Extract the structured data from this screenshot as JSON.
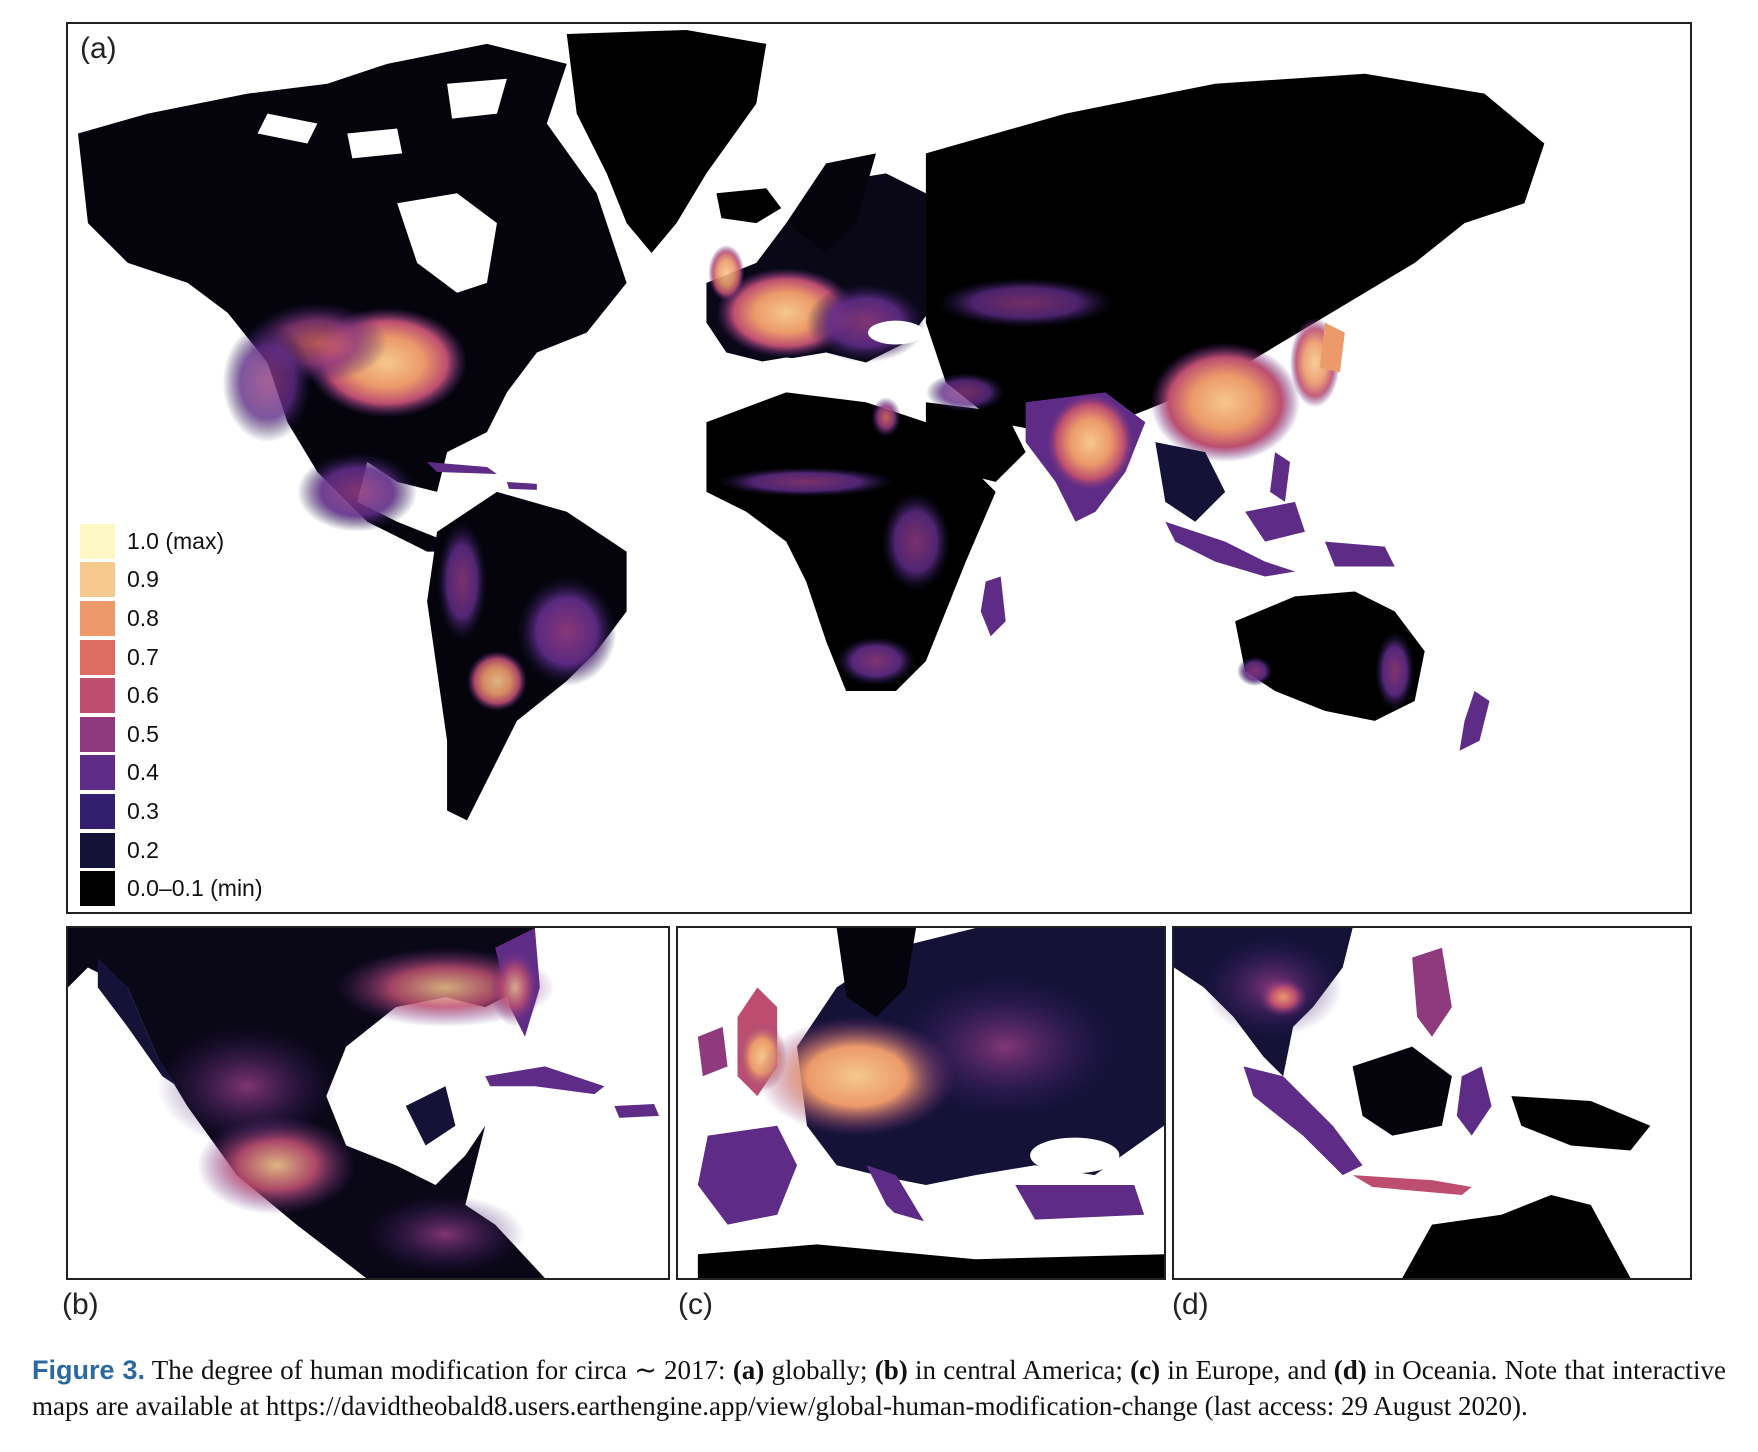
{
  "panels": {
    "a": {
      "label": "(a)"
    },
    "b": {
      "label": "(b)"
    },
    "c": {
      "label": "(c)"
    },
    "d": {
      "label": "(d)"
    }
  },
  "legend": {
    "items": [
      {
        "label": "1.0 (max)",
        "color": "#fcf7c4"
      },
      {
        "label": "0.9",
        "color": "#f5c88d"
      },
      {
        "label": "0.8",
        "color": "#ec9a6a"
      },
      {
        "label": "0.7",
        "color": "#dd6c63"
      },
      {
        "label": "0.6",
        "color": "#bd4e70"
      },
      {
        "label": "0.5",
        "color": "#8f3a7d"
      },
      {
        "label": "0.4",
        "color": "#5e2b87"
      },
      {
        "label": "0.3",
        "color": "#331e6e"
      },
      {
        "label": "0.2",
        "color": "#151238"
      },
      {
        "label": "0.0–0.1 (min)",
        "color": "#000000"
      }
    ]
  },
  "caption": {
    "figure_label": "Figure 3.",
    "text_1": " The degree of human modification for circa ∼ 2017: ",
    "a_label": "(a)",
    "text_2": " globally; ",
    "b_label": "(b)",
    "text_3": " in central America; ",
    "c_label": "(c)",
    "text_4": " in Europe, and ",
    "d_label": "(d)",
    "text_5": " in Oceania. Note that interactive maps are available at https://davidtheobald8.users.earthengine.app/view/global-human-modification-change (last access: 29 August 2020)."
  }
}
